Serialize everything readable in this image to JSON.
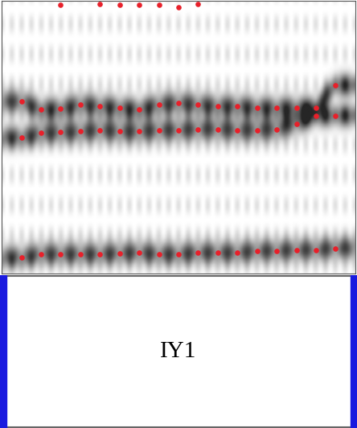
{
  "chart_data": {
    "type": "scatter",
    "tick_labels": false,
    "color": "#e8202a",
    "marker": "o",
    "x": [
      1,
      2,
      3,
      4,
      5,
      6,
      7,
      8,
      9,
      10,
      11,
      12,
      13,
      14,
      15,
      16,
      17
    ],
    "xlim": [
      0,
      18
    ],
    "ylim": [
      0,
      1
    ],
    "series": [
      {
        "values": [
          0.059,
          0.071,
          0.071,
          0.071,
          0.071,
          0.074,
          0.076,
          0.071,
          0.071,
          0.076,
          0.076,
          0.076,
          0.082,
          0.082,
          0.085,
          0.085,
          0.091
        ]
      },
      {
        "values": [
          0.5,
          0.515,
          0.518,
          0.521,
          0.526,
          0.521,
          0.521,
          0.526,
          0.526,
          0.529,
          0.529,
          0.526,
          0.526,
          0.529,
          0.55,
          0.579,
          0.579
        ]
      },
      {
        "values": [
          0.632,
          0.603,
          0.606,
          0.621,
          0.615,
          0.609,
          0.603,
          0.621,
          0.626,
          0.621,
          0.615,
          0.615,
          0.609,
          0.609,
          0.609,
          0.609,
          0.691
        ]
      },
      {
        "values": [
          null,
          null,
          0.985,
          null,
          0.988,
          0.985,
          0.985,
          0.985,
          0.976,
          0.988,
          null,
          null,
          null,
          null,
          null,
          null,
          null
        ]
      }
    ]
  },
  "label_panel": {
    "text": "IY1"
  }
}
